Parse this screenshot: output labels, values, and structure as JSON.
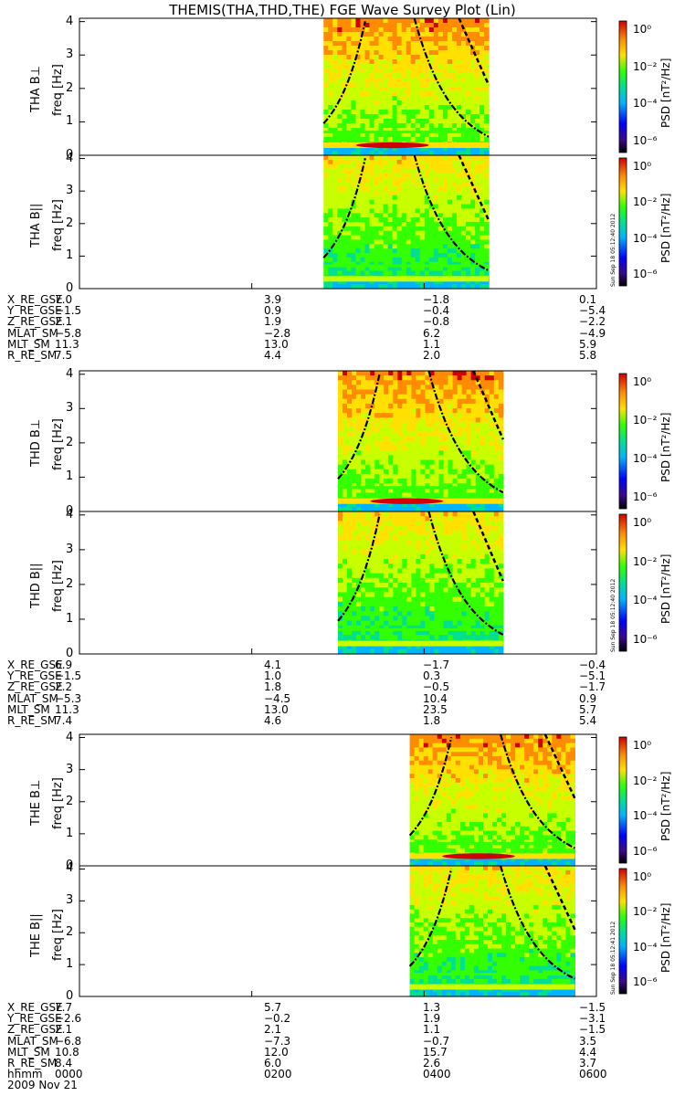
{
  "title": "THEMIS(THA,THD,THE) FGE Wave Survey Plot (Lin)",
  "colors": {
    "plot_bg": "#ffffff",
    "frame": "#000000"
  },
  "chart_data": [
    {
      "type": "heatmap",
      "probe": "THA",
      "panels": [
        {
          "label": "THA B⊥",
          "ylabel": "freq [Hz]",
          "ylim": [
            0,
            4.1
          ],
          "data_start_hhmm": "0250",
          "data_end_hhmm": "0445"
        },
        {
          "label": "THA B||",
          "ylabel": "freq [Hz]",
          "ylim": [
            0,
            4.1
          ],
          "data_start_hhmm": "0250",
          "data_end_hhmm": "0445"
        }
      ],
      "yticks": [
        "0",
        "1",
        "2",
        "3",
        "4"
      ],
      "colorbar": {
        "label": "PSD [nT²/Hz]",
        "ticks": [
          "10⁰",
          "10⁻²",
          "10⁻⁴",
          "10⁻⁶"
        ]
      },
      "timestamp": "Sun Sep 18 05:12:40 2012",
      "ephemeris": {
        "rows": [
          "X_RE_GSE",
          "Y_RE_GSE",
          "Z_RE_GSE",
          "MLAT_SM",
          "MLT_SM",
          "R_RE_SM"
        ],
        "columns": [
          [
            "7.0",
            "-1.5",
            "2.1",
            "-5.8",
            "11.3",
            "7.5"
          ],
          [
            "3.9",
            "0.9",
            "1.9",
            "-2.8",
            "13.0",
            "4.4"
          ],
          [
            "-1.8",
            "-0.4",
            "-0.8",
            "6.2",
            "1.1",
            "2.0"
          ],
          [
            "0.1",
            "-5.4",
            "-2.2",
            "-4.9",
            "5.9",
            "5.8"
          ]
        ]
      }
    },
    {
      "type": "heatmap",
      "probe": "THD",
      "panels": [
        {
          "label": "THD B⊥",
          "ylabel": "freq [Hz]",
          "ylim": [
            0,
            4.1
          ],
          "data_start_hhmm": "0300",
          "data_end_hhmm": "0455"
        },
        {
          "label": "THD B||",
          "ylabel": "freq [Hz]",
          "ylim": [
            0,
            4.1
          ],
          "data_start_hhmm": "0300",
          "data_end_hhmm": "0455"
        }
      ],
      "yticks": [
        "0",
        "1",
        "2",
        "3",
        "4"
      ],
      "colorbar": {
        "label": "PSD [nT²/Hz]",
        "ticks": [
          "10⁰",
          "10⁻²",
          "10⁻⁴",
          "10⁻⁶"
        ]
      },
      "timestamp": "Sun Sep 18 05:12:40 2012",
      "ephemeris": {
        "rows": [
          "X_RE_GSE",
          "Y_RE_GSE",
          "Z_RE_GSE",
          "MLAT_SM",
          "MLT_SM",
          "R_RE_SM"
        ],
        "columns": [
          [
            "6.9",
            "-1.5",
            "2.2",
            "-5.3",
            "11.3",
            "7.4"
          ],
          [
            "4.1",
            "1.0",
            "1.8",
            "-4.5",
            "13.0",
            "4.6"
          ],
          [
            "-1.7",
            "0.3",
            "-0.5",
            "10.4",
            "23.5",
            "1.8"
          ],
          [
            "-0.4",
            "-5.1",
            "-1.7",
            "0.9",
            "5.7",
            "5.4"
          ]
        ]
      }
    },
    {
      "type": "heatmap",
      "probe": "THE",
      "panels": [
        {
          "label": "THE B⊥",
          "ylabel": "freq [Hz]",
          "ylim": [
            0,
            4.1
          ],
          "data_start_hhmm": "0350",
          "data_end_hhmm": "0545"
        },
        {
          "label": "THE B||",
          "ylabel": "freq [Hz]",
          "ylim": [
            0,
            4.1
          ],
          "data_start_hhmm": "0350",
          "data_end_hhmm": "0545"
        }
      ],
      "yticks": [
        "0",
        "1",
        "2",
        "3",
        "4"
      ],
      "colorbar": {
        "label": "PSD [nT²/Hz]",
        "ticks": [
          "10⁰",
          "10⁻²",
          "10⁻⁴",
          "10⁻⁶"
        ]
      },
      "timestamp": "Sun Sep 18 05:12:41 2012",
      "ephemeris": {
        "rows": [
          "X_RE_GSE",
          "Y_RE_GSE",
          "Z_RE_GSE",
          "MLAT_SM",
          "MLT_SM",
          "R_RE_SM"
        ],
        "columns": [
          [
            "7.7",
            "-2.6",
            "2.1",
            "-6.8",
            "10.8",
            "8.4"
          ],
          [
            "5.7",
            "-0.2",
            "2.1",
            "-7.3",
            "12.0",
            "6.0"
          ],
          [
            "1.3",
            "1.9",
            "1.1",
            "-0.7",
            "15.7",
            "2.6"
          ],
          [
            "-1.5",
            "-3.1",
            "-1.5",
            "3.5",
            "4.4",
            "3.7"
          ]
        ]
      }
    }
  ],
  "x_axis": {
    "row_label": "hhmm",
    "ticks": [
      "0000",
      "0200",
      "0400",
      "0600"
    ],
    "date": "2009 Nov 21"
  }
}
